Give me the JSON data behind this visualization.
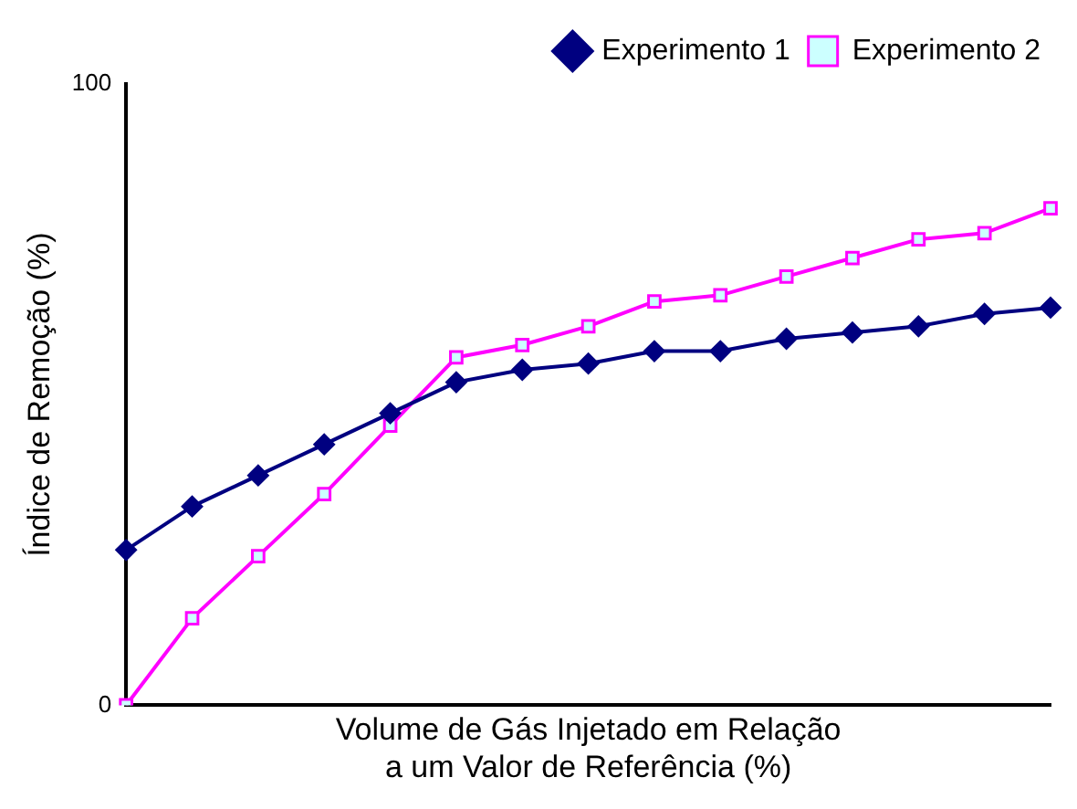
{
  "chart_data": {
    "type": "line",
    "xlabel": "Volume de Gás Injetado em Relação\na um Valor de Referência (%)",
    "ylabel": "Índice de Remoção (%)",
    "categories": [
      null,
      null,
      null,
      null,
      null,
      null,
      null,
      null,
      null,
      null,
      null,
      null,
      null,
      null,
      null
    ],
    "series": [
      {
        "name": "Experimento 1",
        "color": "#000080",
        "marker": "diamond",
        "values": [
          25,
          32,
          37,
          42,
          47,
          52,
          54,
          55,
          57,
          57,
          59,
          60,
          61,
          63,
          64
        ]
      },
      {
        "name": "Experimento 2",
        "color": "#ff00ff",
        "marker": "square",
        "values": [
          0,
          14,
          24,
          34,
          45,
          56,
          58,
          61,
          65,
          66,
          69,
          72,
          75,
          76,
          80
        ]
      }
    ],
    "ylim": [
      0,
      100
    ],
    "yticks": [
      0,
      100
    ],
    "tick_labels": "y",
    "grid": false,
    "legend": "top right",
    "line_style": "solid"
  }
}
